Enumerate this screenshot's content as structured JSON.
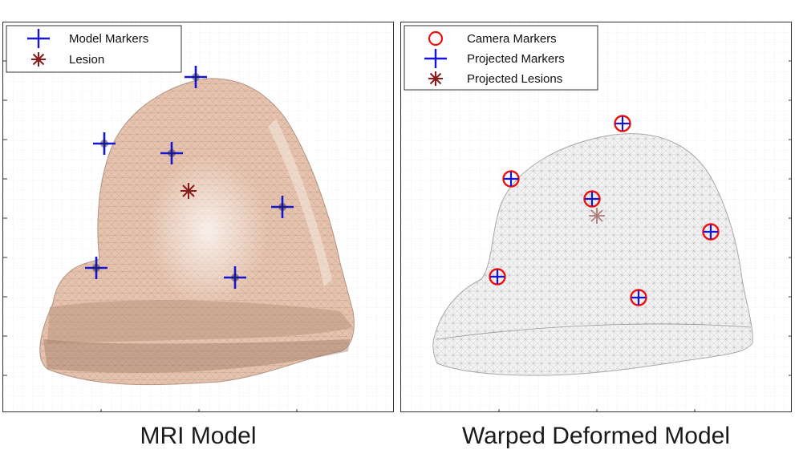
{
  "panels": {
    "left": {
      "caption": "MRI Model",
      "legend": [
        {
          "label": "Model Markers",
          "symbol": "plus",
          "color": "#1515d8"
        },
        {
          "label": "Lesion",
          "symbol": "asterisk",
          "color": "#8b1a1a"
        }
      ],
      "mesh_fill": "#e7c3ad",
      "mesh_stroke": "#8a7a70"
    },
    "right": {
      "caption": "Warped Deformed Model",
      "legend": [
        {
          "label": "Camera Markers",
          "symbol": "circle",
          "color": "#ee1111"
        },
        {
          "label": "Projected Markers",
          "symbol": "plus",
          "color": "#1515d8"
        },
        {
          "label": "Projected Lesions",
          "symbol": "asterisk",
          "color": "#8b1a1a"
        }
      ],
      "mesh_fill": "#f4f4f4",
      "mesh_stroke": "#9a9a9a"
    }
  }
}
